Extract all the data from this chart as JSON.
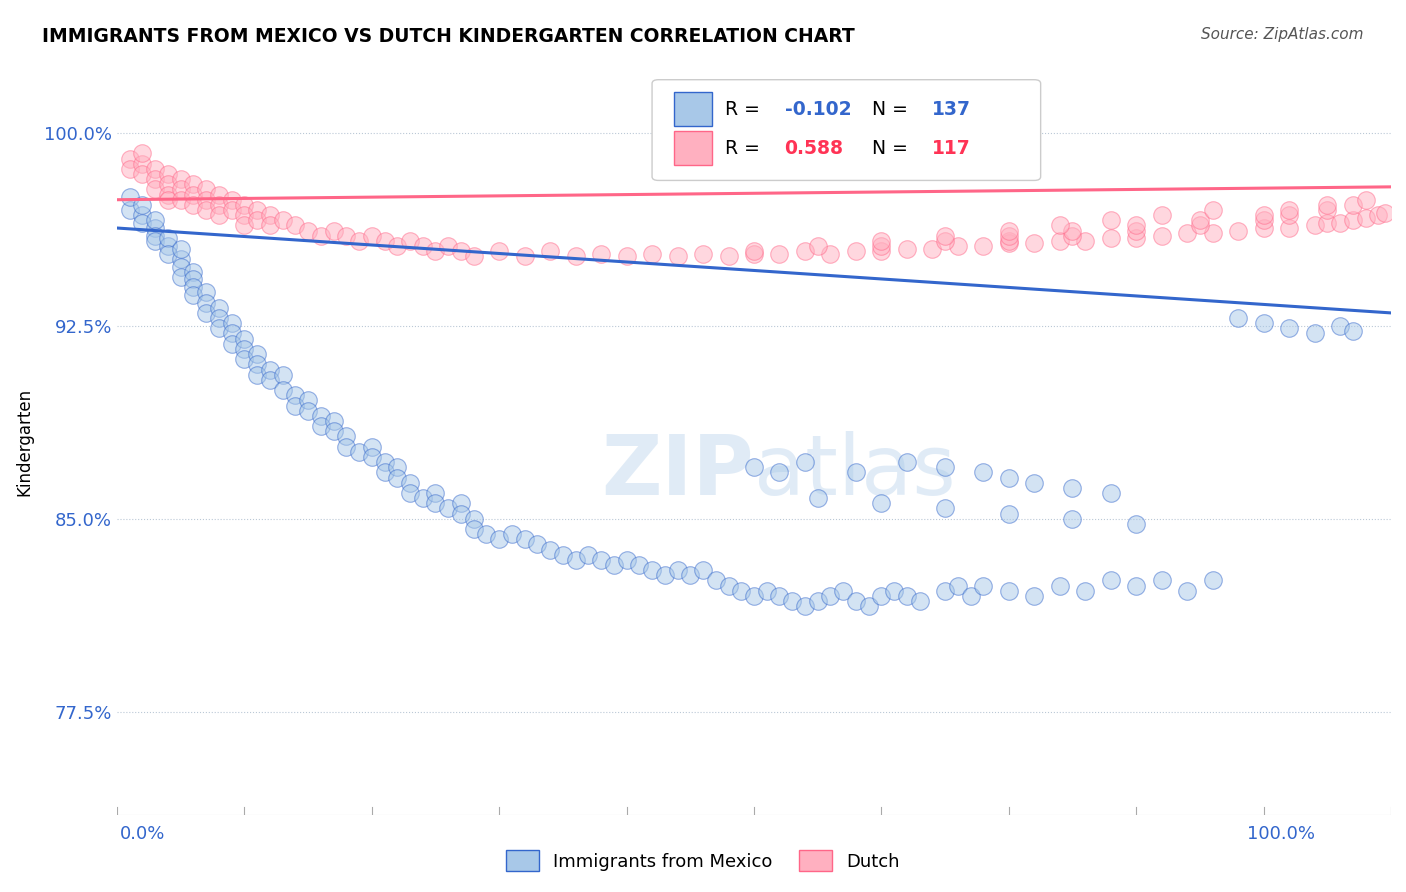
{
  "title": "IMMIGRANTS FROM MEXICO VS DUTCH KINDERGARTEN CORRELATION CHART",
  "source_text": "Source: ZipAtlas.com",
  "ylabel": "Kindergarten",
  "y_ticks": [
    0.775,
    0.85,
    0.925,
    1.0
  ],
  "y_tick_labels": [
    "77.5%",
    "85.0%",
    "92.5%",
    "100.0%"
  ],
  "x_lim": [
    0.0,
    1.0
  ],
  "y_lim": [
    0.735,
    1.025
  ],
  "legend_r_mexico": "-0.102",
  "legend_n_mexico": "137",
  "legend_r_dutch": "0.588",
  "legend_n_dutch": "117",
  "blue_color": "#A8C8E8",
  "pink_color": "#FFB0C0",
  "blue_line_color": "#3366CC",
  "pink_line_color": "#FF6688",
  "background_color": "#FFFFFF",
  "watermark_text": "ZIPatlas",
  "mexico_x": [
    0.01,
    0.01,
    0.02,
    0.02,
    0.02,
    0.03,
    0.03,
    0.03,
    0.03,
    0.04,
    0.04,
    0.04,
    0.05,
    0.05,
    0.05,
    0.05,
    0.06,
    0.06,
    0.06,
    0.06,
    0.07,
    0.07,
    0.07,
    0.08,
    0.08,
    0.08,
    0.09,
    0.09,
    0.09,
    0.1,
    0.1,
    0.1,
    0.11,
    0.11,
    0.11,
    0.12,
    0.12,
    0.13,
    0.13,
    0.14,
    0.14,
    0.15,
    0.15,
    0.16,
    0.16,
    0.17,
    0.17,
    0.18,
    0.18,
    0.19,
    0.2,
    0.2,
    0.21,
    0.21,
    0.22,
    0.22,
    0.23,
    0.23,
    0.24,
    0.25,
    0.25,
    0.26,
    0.27,
    0.27,
    0.28,
    0.28,
    0.29,
    0.3,
    0.31,
    0.32,
    0.33,
    0.34,
    0.35,
    0.36,
    0.37,
    0.38,
    0.39,
    0.4,
    0.41,
    0.42,
    0.43,
    0.44,
    0.45,
    0.46,
    0.47,
    0.48,
    0.49,
    0.5,
    0.51,
    0.52,
    0.53,
    0.54,
    0.55,
    0.56,
    0.57,
    0.58,
    0.59,
    0.6,
    0.61,
    0.62,
    0.63,
    0.65,
    0.66,
    0.67,
    0.68,
    0.7,
    0.72,
    0.74,
    0.76,
    0.78,
    0.8,
    0.82,
    0.84,
    0.86,
    0.88,
    0.9,
    0.92,
    0.94,
    0.96,
    0.97,
    0.5,
    0.52,
    0.54,
    0.58,
    0.62,
    0.65,
    0.68,
    0.7,
    0.72,
    0.75,
    0.78,
    0.55,
    0.6,
    0.65,
    0.7,
    0.75,
    0.8
  ],
  "mexico_y": [
    0.97,
    0.975,
    0.968,
    0.972,
    0.965,
    0.963,
    0.966,
    0.96,
    0.958,
    0.956,
    0.959,
    0.953,
    0.951,
    0.955,
    0.948,
    0.944,
    0.946,
    0.943,
    0.94,
    0.937,
    0.938,
    0.934,
    0.93,
    0.932,
    0.928,
    0.924,
    0.926,
    0.922,
    0.918,
    0.92,
    0.916,
    0.912,
    0.914,
    0.91,
    0.906,
    0.908,
    0.904,
    0.906,
    0.9,
    0.898,
    0.894,
    0.896,
    0.892,
    0.89,
    0.886,
    0.888,
    0.884,
    0.882,
    0.878,
    0.876,
    0.878,
    0.874,
    0.872,
    0.868,
    0.87,
    0.866,
    0.864,
    0.86,
    0.858,
    0.86,
    0.856,
    0.854,
    0.856,
    0.852,
    0.85,
    0.846,
    0.844,
    0.842,
    0.844,
    0.842,
    0.84,
    0.838,
    0.836,
    0.834,
    0.836,
    0.834,
    0.832,
    0.834,
    0.832,
    0.83,
    0.828,
    0.83,
    0.828,
    0.83,
    0.826,
    0.824,
    0.822,
    0.82,
    0.822,
    0.82,
    0.818,
    0.816,
    0.818,
    0.82,
    0.822,
    0.818,
    0.816,
    0.82,
    0.822,
    0.82,
    0.818,
    0.822,
    0.824,
    0.82,
    0.824,
    0.822,
    0.82,
    0.824,
    0.822,
    0.826,
    0.824,
    0.826,
    0.822,
    0.826,
    0.928,
    0.926,
    0.924,
    0.922,
    0.925,
    0.923,
    0.87,
    0.868,
    0.872,
    0.868,
    0.872,
    0.87,
    0.868,
    0.866,
    0.864,
    0.862,
    0.86,
    0.858,
    0.856,
    0.854,
    0.852,
    0.85,
    0.848
  ],
  "dutch_x": [
    0.01,
    0.01,
    0.02,
    0.02,
    0.02,
    0.03,
    0.03,
    0.03,
    0.04,
    0.04,
    0.04,
    0.04,
    0.05,
    0.05,
    0.05,
    0.06,
    0.06,
    0.06,
    0.07,
    0.07,
    0.07,
    0.08,
    0.08,
    0.08,
    0.09,
    0.09,
    0.1,
    0.1,
    0.1,
    0.11,
    0.11,
    0.12,
    0.12,
    0.13,
    0.14,
    0.15,
    0.16,
    0.17,
    0.18,
    0.19,
    0.2,
    0.21,
    0.22,
    0.23,
    0.24,
    0.25,
    0.26,
    0.27,
    0.28,
    0.3,
    0.32,
    0.34,
    0.36,
    0.38,
    0.4,
    0.42,
    0.44,
    0.46,
    0.48,
    0.5,
    0.52,
    0.54,
    0.56,
    0.58,
    0.6,
    0.62,
    0.64,
    0.66,
    0.68,
    0.7,
    0.72,
    0.74,
    0.76,
    0.78,
    0.8,
    0.82,
    0.84,
    0.86,
    0.88,
    0.9,
    0.92,
    0.94,
    0.95,
    0.96,
    0.97,
    0.98,
    0.99,
    0.995,
    0.7,
    0.75,
    0.8,
    0.85,
    0.9,
    0.92,
    0.95,
    0.97,
    0.98,
    0.6,
    0.65,
    0.7,
    0.75,
    0.8,
    0.85,
    0.9,
    0.92,
    0.95,
    0.5,
    0.55,
    0.6,
    0.65,
    0.7,
    0.74,
    0.78,
    0.82,
    0.86
  ],
  "dutch_y": [
    0.99,
    0.986,
    0.988,
    0.984,
    0.992,
    0.986,
    0.982,
    0.978,
    0.984,
    0.98,
    0.976,
    0.974,
    0.982,
    0.978,
    0.974,
    0.98,
    0.976,
    0.972,
    0.978,
    0.974,
    0.97,
    0.976,
    0.972,
    0.968,
    0.974,
    0.97,
    0.972,
    0.968,
    0.964,
    0.97,
    0.966,
    0.968,
    0.964,
    0.966,
    0.964,
    0.962,
    0.96,
    0.962,
    0.96,
    0.958,
    0.96,
    0.958,
    0.956,
    0.958,
    0.956,
    0.954,
    0.956,
    0.954,
    0.952,
    0.954,
    0.952,
    0.954,
    0.952,
    0.953,
    0.952,
    0.953,
    0.952,
    0.953,
    0.952,
    0.953,
    0.953,
    0.954,
    0.953,
    0.954,
    0.954,
    0.955,
    0.955,
    0.956,
    0.956,
    0.957,
    0.957,
    0.958,
    0.958,
    0.959,
    0.959,
    0.96,
    0.961,
    0.961,
    0.962,
    0.963,
    0.963,
    0.964,
    0.965,
    0.965,
    0.966,
    0.967,
    0.968,
    0.969,
    0.958,
    0.96,
    0.962,
    0.964,
    0.966,
    0.968,
    0.97,
    0.972,
    0.974,
    0.956,
    0.958,
    0.96,
    0.962,
    0.964,
    0.966,
    0.968,
    0.97,
    0.972,
    0.954,
    0.956,
    0.958,
    0.96,
    0.962,
    0.964,
    0.966,
    0.968,
    0.97
  ]
}
